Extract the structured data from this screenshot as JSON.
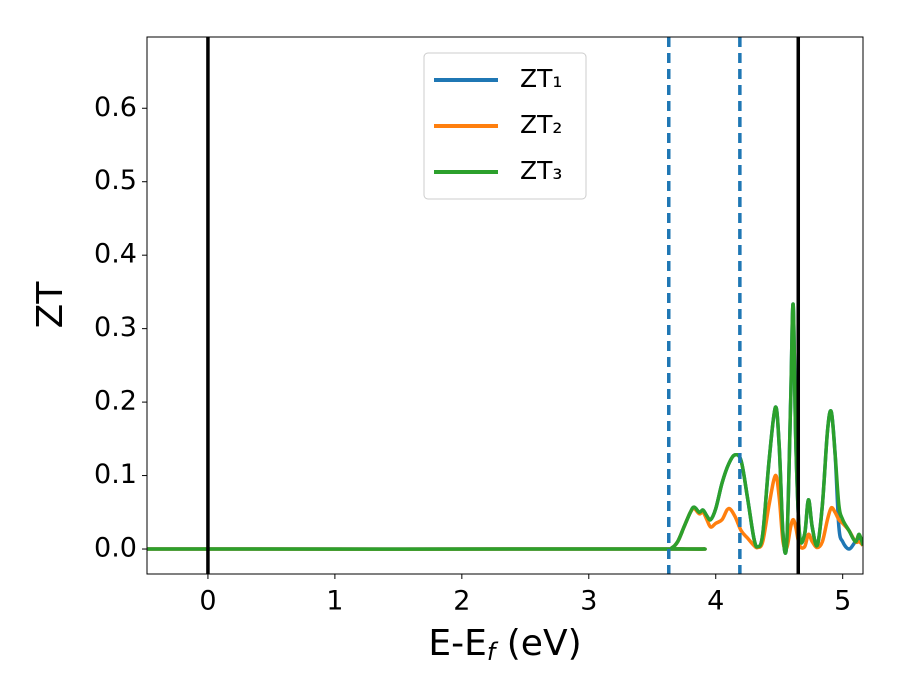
{
  "chart_data": {
    "type": "line",
    "x_label": {
      "main": "E-E",
      "sub": "f",
      "rest": " (eV)"
    },
    "y_label": "ZT",
    "xlim": [
      -0.48,
      5.16
    ],
    "ylim": [
      -0.034,
      0.697
    ],
    "xticks": [
      0,
      1,
      2,
      3,
      4,
      5
    ],
    "yticks": [
      {
        "value": 0,
        "label": "0.0"
      },
      {
        "value": 0.1,
        "label": "0.1"
      },
      {
        "value": 0.2,
        "label": "0.2"
      },
      {
        "value": 0.3,
        "label": "0.3"
      },
      {
        "value": 0.4,
        "label": "0.4"
      },
      {
        "value": 0.5,
        "label": "0.5"
      },
      {
        "value": 0.6,
        "label": "0.6"
      }
    ],
    "legend": "upper center",
    "vlines": [
      {
        "x": 0,
        "color": "#000000",
        "style": "solid"
      },
      {
        "x": 4.65,
        "color": "#000000",
        "style": "solid"
      },
      {
        "x": 3.63,
        "color": "#1f77b4",
        "style": "dashed"
      },
      {
        "x": 4.19,
        "color": "#1f77b4",
        "style": "dashed"
      }
    ],
    "x": [
      -0.48,
      3.6,
      3.65,
      3.7,
      3.75,
      3.8,
      3.83,
      3.87,
      3.9,
      3.93,
      3.96,
      4.0,
      4.05,
      4.1,
      4.15,
      4.2,
      4.25,
      4.3,
      4.33,
      4.37,
      4.42,
      4.47,
      4.5,
      4.53,
      4.56,
      4.59,
      4.61,
      4.63,
      4.66,
      4.7,
      4.73,
      4.76,
      4.8,
      4.84,
      4.88,
      4.91,
      4.94,
      4.97,
      5.0,
      5.05,
      5.1,
      5.13,
      5.16
    ],
    "series": [
      {
        "name": "ZT₁",
        "color": "#1f77b4",
        "values": [
          0,
          0,
          0.001,
          0.01,
          0.03,
          0.05,
          0.057,
          0.05,
          0.053,
          0.045,
          0.04,
          0.055,
          0.09,
          0.115,
          0.128,
          0.12,
          0.07,
          0.015,
          0.003,
          0.02,
          0.12,
          0.193,
          0.14,
          0.02,
          0.01,
          0.2,
          0.333,
          0.15,
          0.02,
          0.02,
          0.067,
          0.03,
          0.005,
          0.06,
          0.16,
          0.187,
          0.13,
          0.03,
          0.01,
          0,
          0.01,
          0.015,
          0.005
        ]
      },
      {
        "name": "ZT₂",
        "color": "#ff7f0e",
        "values": [
          0,
          0,
          0.001,
          0.01,
          0.03,
          0.05,
          0.055,
          0.048,
          0.05,
          0.04,
          0.03,
          0.035,
          0.04,
          0.055,
          0.045,
          0.025,
          0.015,
          0.005,
          0.002,
          0.01,
          0.06,
          0.1,
          0.07,
          0.01,
          0.002,
          0.03,
          0.04,
          0.03,
          0.005,
          0.003,
          0.02,
          0.01,
          0.002,
          0.01,
          0.04,
          0.056,
          0.05,
          0.04,
          0.035,
          0.025,
          0.01,
          0.01,
          0.005
        ]
      },
      {
        "name": "ZT₃",
        "color": "#2ca02c",
        "values": [
          0,
          0,
          0.001,
          0.01,
          0.03,
          0.05,
          0.057,
          0.05,
          0.053,
          0.045,
          0.04,
          0.055,
          0.09,
          0.115,
          0.128,
          0.12,
          0.07,
          0.015,
          0.003,
          0.02,
          0.12,
          0.193,
          0.14,
          0.02,
          0.01,
          0.2,
          0.333,
          0.15,
          0.02,
          0.02,
          0.067,
          0.03,
          0.005,
          0.06,
          0.16,
          0.187,
          0.13,
          0.06,
          0.04,
          0.025,
          0.01,
          0.02,
          0.005
        ]
      }
    ]
  }
}
